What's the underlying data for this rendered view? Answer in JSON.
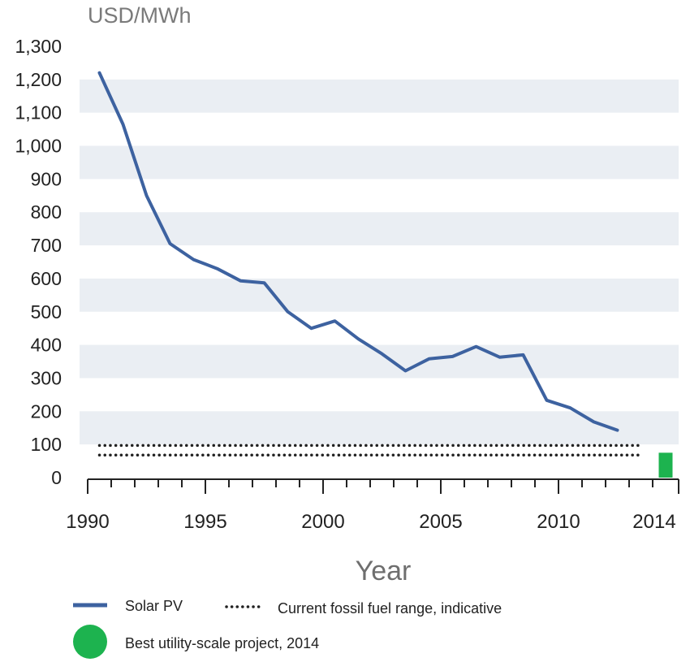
{
  "chart_data": {
    "type": "line",
    "ylabel": "USD/MWh",
    "xlabel": "Year",
    "ylim": [
      0,
      1300
    ],
    "y_ticks": [
      "0",
      "100",
      "200",
      "300",
      "400",
      "500",
      "600",
      "700",
      "800",
      "900",
      "1,000",
      "1,100",
      "1,200",
      "1,300"
    ],
    "y_tick_values": [
      0,
      100,
      200,
      300,
      400,
      500,
      600,
      700,
      800,
      900,
      1000,
      1100,
      1200,
      1300
    ],
    "x_ticks": [
      "1990",
      "1995",
      "2000",
      "2005",
      "2010",
      "2014"
    ],
    "x_tick_values": [
      1990,
      1995,
      2000,
      2005,
      2010,
      2014
    ],
    "series": [
      {
        "name": "Solar PV",
        "color": "#3d62a0",
        "style": "solid",
        "x": [
          1990.5,
          1991.5,
          1992.5,
          1993.5,
          1994.5,
          1995.5,
          1996.5,
          1997.5,
          1998.5,
          1999.5,
          2000.5,
          2001.5,
          2002.5,
          2003.5,
          2004.5,
          2005.5,
          2006.5,
          2007.5,
          2008.5,
          2009.5,
          2010.5,
          2011.5,
          2012.5
        ],
        "y": [
          1220,
          1065,
          850,
          705,
          657,
          630,
          593,
          587,
          500,
          450,
          472,
          418,
          373,
          322,
          358,
          365,
          395,
          363,
          370,
          233,
          210,
          168,
          143
        ]
      },
      {
        "name": "Current fossil fuel range, indicative",
        "color": "#222222",
        "style": "dotted",
        "range": [
          68,
          97
        ],
        "x_range": [
          1990.5,
          2012.5
        ]
      },
      {
        "name": "Best utility-scale project, 2014",
        "color": "#1db34f",
        "style": "bar",
        "x": 2014,
        "value": 75
      }
    ],
    "grid": "horizontal-bands",
    "band_color": "#eaeef3",
    "legend_position": "bottom"
  },
  "legend": {
    "solar_pv": "Solar PV",
    "fossil": "Current fossil fuel range, indicative",
    "best_project": "Best utility-scale project, 2014"
  }
}
